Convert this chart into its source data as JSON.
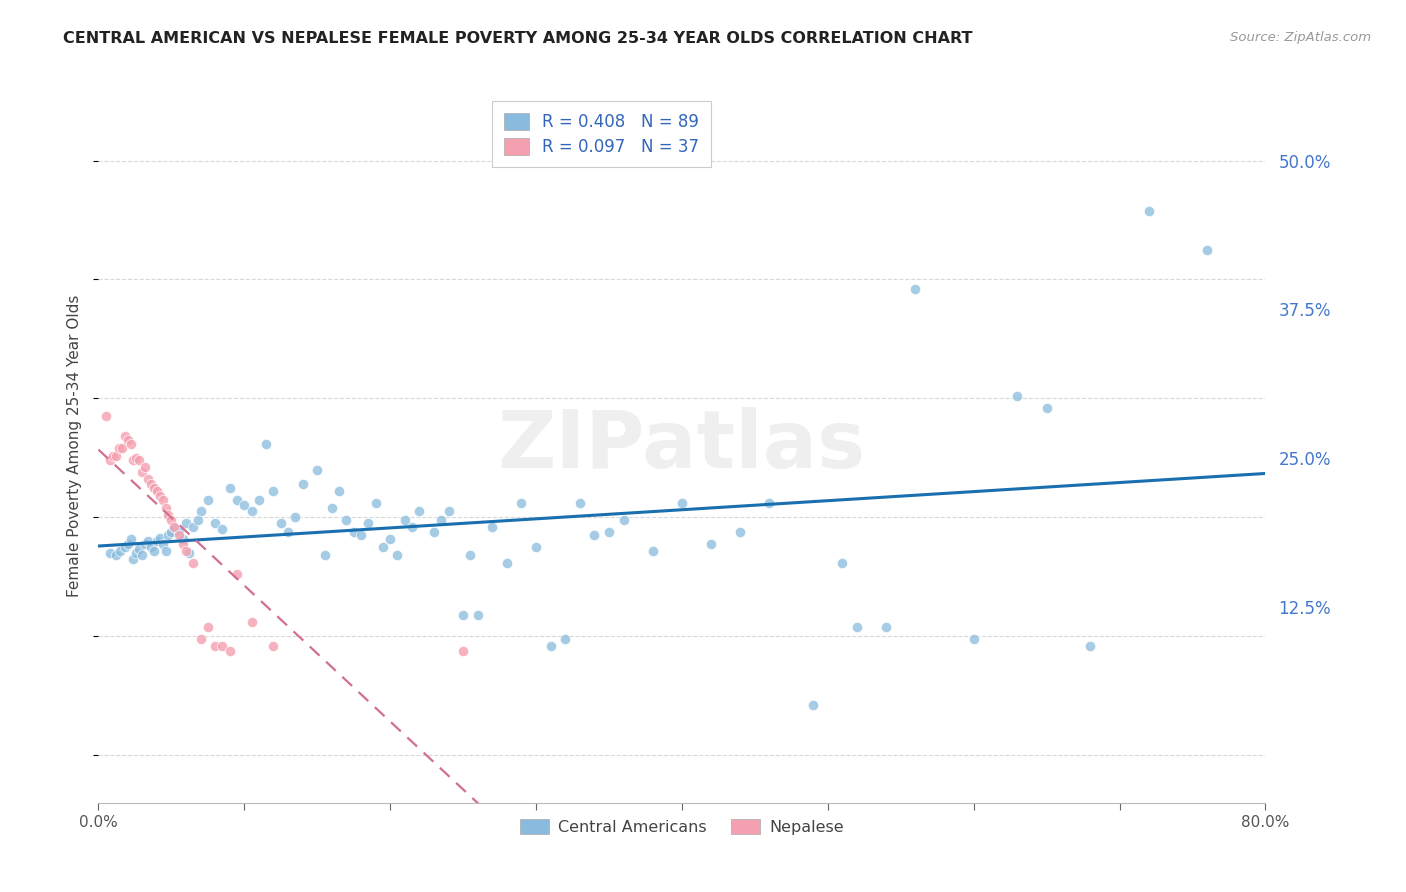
{
  "title": "CENTRAL AMERICAN VS NEPALESE FEMALE POVERTY AMONG 25-34 YEAR OLDS CORRELATION CHART",
  "source": "Source: ZipAtlas.com",
  "ylabel": "Female Poverty Among 25-34 Year Olds",
  "xlim": [
    0.0,
    0.8
  ],
  "ylim": [
    -0.04,
    0.56
  ],
  "xticks": [
    0.0,
    0.1,
    0.2,
    0.3,
    0.4,
    0.5,
    0.6,
    0.7,
    0.8
  ],
  "xticklabels": [
    "0.0%",
    "",
    "",
    "",
    "",
    "",
    "",
    "",
    "80.0%"
  ],
  "yticks": [
    0.0,
    0.125,
    0.25,
    0.375,
    0.5
  ],
  "yticklabels": [
    "",
    "12.5%",
    "25.0%",
    "37.5%",
    "50.0%"
  ],
  "background_color": "#ffffff",
  "grid_color": "#d8d8d8",
  "blue_color": "#88bbdd",
  "pink_color": "#f4a0b0",
  "blue_line_color": "#1a6faf",
  "pink_line_color": "#d07090",
  "R_blue": 0.408,
  "N_blue": 89,
  "R_pink": 0.097,
  "N_pink": 37,
  "legend_blue_label": "Central Americans",
  "legend_pink_label": "Nepalese",
  "watermark": "ZIPatlas",
  "blue_x": [
    0.008,
    0.012,
    0.015,
    0.018,
    0.02,
    0.022,
    0.024,
    0.026,
    0.028,
    0.03,
    0.032,
    0.034,
    0.036,
    0.038,
    0.04,
    0.042,
    0.044,
    0.046,
    0.048,
    0.05,
    0.052,
    0.055,
    0.058,
    0.06,
    0.062,
    0.065,
    0.068,
    0.07,
    0.075,
    0.08,
    0.085,
    0.09,
    0.095,
    0.1,
    0.105,
    0.11,
    0.115,
    0.12,
    0.125,
    0.13,
    0.135,
    0.14,
    0.15,
    0.155,
    0.16,
    0.165,
    0.17,
    0.175,
    0.18,
    0.185,
    0.19,
    0.195,
    0.2,
    0.205,
    0.21,
    0.215,
    0.22,
    0.23,
    0.235,
    0.24,
    0.25,
    0.255,
    0.26,
    0.27,
    0.28,
    0.29,
    0.3,
    0.31,
    0.32,
    0.33,
    0.34,
    0.35,
    0.36,
    0.38,
    0.4,
    0.42,
    0.44,
    0.46,
    0.49,
    0.51,
    0.52,
    0.54,
    0.56,
    0.6,
    0.63,
    0.65,
    0.68,
    0.72,
    0.76
  ],
  "blue_y": [
    0.17,
    0.168,
    0.172,
    0.175,
    0.178,
    0.182,
    0.165,
    0.17,
    0.173,
    0.168,
    0.178,
    0.18,
    0.175,
    0.172,
    0.18,
    0.183,
    0.178,
    0.172,
    0.185,
    0.188,
    0.192,
    0.188,
    0.182,
    0.195,
    0.17,
    0.192,
    0.198,
    0.205,
    0.215,
    0.195,
    0.19,
    0.225,
    0.215,
    0.21,
    0.205,
    0.215,
    0.262,
    0.222,
    0.195,
    0.188,
    0.2,
    0.228,
    0.24,
    0.168,
    0.208,
    0.222,
    0.198,
    0.188,
    0.185,
    0.195,
    0.212,
    0.175,
    0.182,
    0.168,
    0.198,
    0.192,
    0.205,
    0.188,
    0.198,
    0.205,
    0.118,
    0.168,
    0.118,
    0.192,
    0.162,
    0.212,
    0.175,
    0.092,
    0.098,
    0.212,
    0.185,
    0.188,
    0.198,
    0.172,
    0.212,
    0.178,
    0.188,
    0.212,
    0.042,
    0.162,
    0.108,
    0.108,
    0.392,
    0.098,
    0.302,
    0.292,
    0.092,
    0.458,
    0.425
  ],
  "pink_x": [
    0.005,
    0.008,
    0.01,
    0.012,
    0.014,
    0.016,
    0.018,
    0.02,
    0.022,
    0.024,
    0.026,
    0.028,
    0.03,
    0.032,
    0.034,
    0.036,
    0.038,
    0.04,
    0.042,
    0.044,
    0.046,
    0.048,
    0.05,
    0.052,
    0.055,
    0.058,
    0.06,
    0.065,
    0.07,
    0.075,
    0.08,
    0.085,
    0.09,
    0.095,
    0.105,
    0.12,
    0.25
  ],
  "pink_y": [
    0.285,
    0.248,
    0.252,
    0.252,
    0.258,
    0.258,
    0.268,
    0.265,
    0.262,
    0.248,
    0.25,
    0.248,
    0.238,
    0.242,
    0.232,
    0.228,
    0.225,
    0.222,
    0.218,
    0.215,
    0.208,
    0.202,
    0.198,
    0.192,
    0.185,
    0.178,
    0.172,
    0.162,
    0.098,
    0.108,
    0.092,
    0.092,
    0.088,
    0.152,
    0.112,
    0.092,
    0.088
  ]
}
